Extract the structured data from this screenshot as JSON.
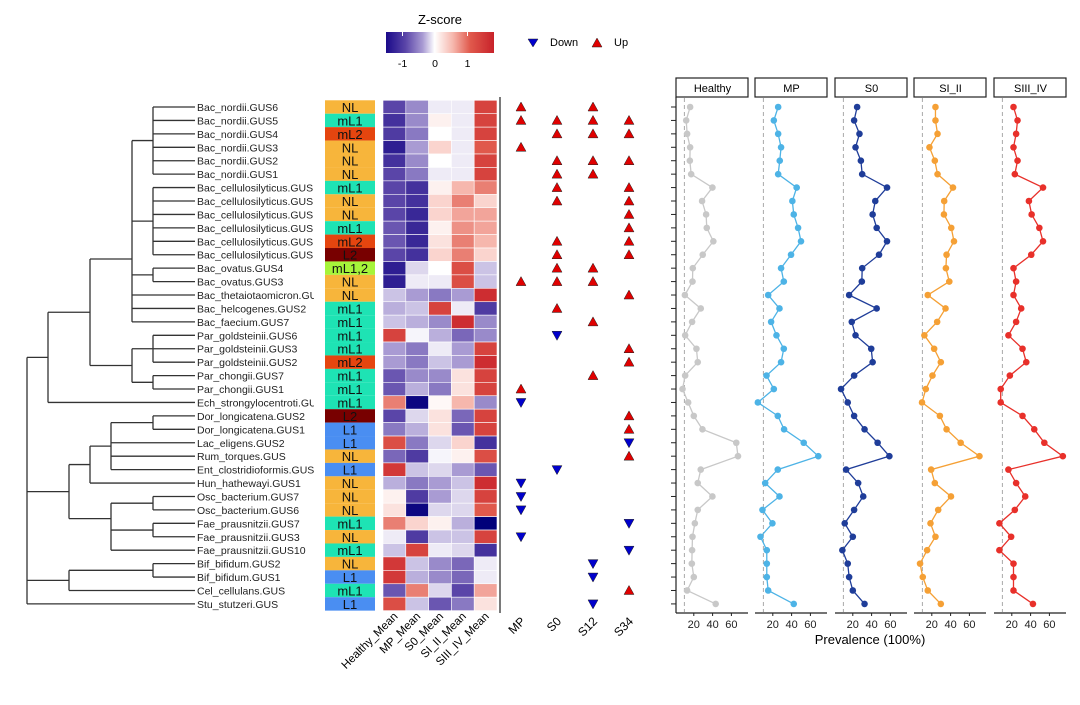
{
  "legend": {
    "zscore_title": "Z-score",
    "zscore_ticks": [
      "-1",
      "0",
      "1"
    ],
    "zscore_tick_values": [
      -1,
      0,
      1
    ],
    "down_label": "Down",
    "up_label": "Up",
    "down_color": "#0000cc",
    "up_color": "#e00000"
  },
  "chart_data": {
    "type": "heatmap",
    "rows": [
      "Bac_nordii.GUS6",
      "Bac_nordii.GUS5",
      "Bac_nordii.GUS4",
      "Bac_nordii.GUS3",
      "Bac_nordii.GUS2",
      "Bac_nordii.GUS1",
      "Bac_cellulosilyticus.GUS",
      "Bac_cellulosilyticus.GUS",
      "Bac_cellulosilyticus.GUS",
      "Bac_cellulosilyticus.GUS",
      "Bac_cellulosilyticus.GUS",
      "Bac_cellulosilyticus.GUS",
      "Bac_ovatus.GUS4",
      "Bac_ovatus.GUS3",
      "Bac_thetaiotaomicron.GU",
      "Bac_helcogenes.GUS2",
      "Bac_faecium.GUS7",
      "Par_goldsteinii.GUS6",
      "Par_goldsteinii.GUS3",
      "Par_goldsteinii.GUS2",
      "Par_chongii.GUS7",
      "Par_chongii.GUS1",
      "Ech_strongylocentroti.GU",
      "Dor_longicatena.GUS2",
      "Dor_longicatena.GUS1",
      "Lac_eligens.GUS2",
      "Rum_torques.GUS",
      "Ent_clostridioformis.GUS",
      "Hun_hathewayi.GUS1",
      "Osc_bacterium.GUS7",
      "Osc_bacterium.GUS6",
      "Fae_prausnitzii.GUS7",
      "Fae_prausnitzii.GUS3",
      "Fae_prausnitzii.GUS10",
      "Bif_bifidum.GUS2",
      "Bif_bifidum.GUS1",
      "Cel_cellulans.GUS",
      "Stu_stutzeri.GUS"
    ],
    "clusters": [
      "NL",
      "mL1",
      "mL2",
      "NL",
      "NL",
      "NL",
      "mL1",
      "NL",
      "NL",
      "mL1",
      "mL2",
      "L2",
      "mL1,2",
      "NL",
      "NL",
      "mL1",
      "mL1",
      "mL1",
      "mL1",
      "mL2",
      "mL1",
      "mL1",
      "mL1",
      "L2",
      "L1",
      "L1",
      "NL",
      "L1",
      "NL",
      "NL",
      "NL",
      "mL1",
      "NL",
      "mL1",
      "NL",
      "L1",
      "mL1",
      "L1"
    ],
    "cluster_colors": {
      "NL": "#f7b53b",
      "mL1": "#1ee3b4",
      "mL2": "#e5450f",
      "L2": "#780000",
      "L1": "#4a8ef2",
      "mL1,2": "#a6f43a"
    },
    "heatmap_columns": [
      "Healthy_Mean",
      "MP_Mean",
      "S0_Mean",
      "SI_II_Mean",
      "SIII_IV_Mean"
    ],
    "zscores": [
      [
        -1.0,
        -0.6,
        -0.1,
        -0.1,
        1.2
      ],
      [
        -1.2,
        -0.6,
        0.1,
        -0.1,
        1.2
      ],
      [
        -1.1,
        -0.7,
        0.0,
        -0.1,
        1.2
      ],
      [
        -1.4,
        -0.5,
        0.3,
        -0.1,
        1.0
      ],
      [
        -1.2,
        -0.6,
        0.0,
        -0.1,
        1.2
      ],
      [
        -1.0,
        -0.7,
        -0.1,
        -0.1,
        1.2
      ],
      [
        -1.0,
        -1.2,
        0.1,
        0.5,
        0.8
      ],
      [
        -1.0,
        -1.2,
        0.3,
        0.8,
        0.3
      ],
      [
        -1.0,
        -1.3,
        0.3,
        0.6,
        0.6
      ],
      [
        -0.9,
        -1.3,
        0.1,
        0.7,
        0.6
      ],
      [
        -0.9,
        -1.3,
        0.2,
        0.8,
        0.5
      ],
      [
        -1.0,
        -1.2,
        0.3,
        0.8,
        0.3
      ],
      [
        -1.4,
        -0.2,
        0.0,
        1.1,
        -0.3
      ],
      [
        -1.4,
        -0.1,
        -0.1,
        1.1,
        -0.3
      ],
      [
        -0.3,
        -0.5,
        -0.7,
        -0.5,
        1.4
      ],
      [
        -0.4,
        -0.3,
        1.2,
        -0.1,
        -1.1
      ],
      [
        -0.3,
        -0.4,
        -0.6,
        1.4,
        -0.6
      ],
      [
        1.2,
        -0.05,
        -0.4,
        -0.8,
        -0.6
      ],
      [
        -0.5,
        -0.7,
        -0.1,
        -0.5,
        1.2
      ],
      [
        -0.5,
        -0.7,
        -0.3,
        -0.5,
        1.4
      ],
      [
        -0.9,
        -0.6,
        -0.6,
        0.2,
        1.2
      ],
      [
        -0.9,
        -0.4,
        -0.7,
        0.2,
        1.2
      ],
      [
        0.8,
        -2.0,
        0.05,
        0.5,
        -0.6
      ],
      [
        -1.0,
        -0.2,
        0.2,
        -0.8,
        1.2
      ],
      [
        -0.7,
        -0.4,
        0.2,
        -0.9,
        1.2
      ],
      [
        1.1,
        -0.7,
        -0.2,
        0.3,
        -1.2
      ],
      [
        -0.8,
        -1.1,
        -0.05,
        0.1,
        1.1
      ],
      [
        1.3,
        -0.3,
        -0.2,
        -0.5,
        -0.9
      ],
      [
        -0.4,
        -0.7,
        -0.5,
        -0.3,
        1.4
      ],
      [
        0.1,
        -1.1,
        -0.5,
        -0.2,
        1.2
      ],
      [
        0.2,
        -2.0,
        -0.2,
        -0.2,
        1.0
      ],
      [
        0.8,
        0.3,
        0.1,
        -0.4,
        -2.3
      ],
      [
        -0.1,
        -1.1,
        -0.3,
        -0.3,
        1.2
      ],
      [
        -0.3,
        1.2,
        -0.1,
        -0.2,
        -1.2
      ],
      [
        1.3,
        -0.3,
        -0.6,
        -0.8,
        -0.1
      ],
      [
        1.3,
        -0.4,
        -0.6,
        -0.8,
        -0.1
      ],
      [
        -0.9,
        0.8,
        -0.2,
        -1.0,
        0.6
      ],
      [
        1.1,
        -0.3,
        -0.9,
        -0.7,
        0.2
      ]
    ],
    "change_columns": [
      "MP",
      "S0",
      "S12",
      "S34"
    ],
    "changes": [
      [
        "up",
        "",
        "up",
        ""
      ],
      [
        "up",
        "up",
        "up",
        "up"
      ],
      [
        "",
        "up",
        "up",
        "up"
      ],
      [
        "up",
        "",
        "",
        ""
      ],
      [
        "",
        "up",
        "up",
        "up"
      ],
      [
        "",
        "up",
        "up",
        ""
      ],
      [
        "",
        "up",
        "",
        "up"
      ],
      [
        "",
        "up",
        "",
        "up"
      ],
      [
        "",
        "",
        "",
        "up"
      ],
      [
        "",
        "",
        "",
        "up"
      ],
      [
        "",
        "up",
        "",
        "up"
      ],
      [
        "",
        "up",
        "",
        "up"
      ],
      [
        "",
        "up",
        "up",
        ""
      ],
      [
        "up",
        "up",
        "up",
        ""
      ],
      [
        "",
        "",
        "",
        "up"
      ],
      [
        "",
        "up",
        "",
        ""
      ],
      [
        "",
        "",
        "up",
        ""
      ],
      [
        "",
        "down",
        "",
        ""
      ],
      [
        "",
        "",
        "",
        "up"
      ],
      [
        "",
        "",
        "",
        "up"
      ],
      [
        "",
        "",
        "up",
        ""
      ],
      [
        "up",
        "",
        "",
        ""
      ],
      [
        "down",
        "",
        "",
        ""
      ],
      [
        "",
        "",
        "",
        "up"
      ],
      [
        "",
        "",
        "",
        "up"
      ],
      [
        "",
        "",
        "",
        "down"
      ],
      [
        "",
        "",
        "",
        "up"
      ],
      [
        "",
        "down",
        "",
        ""
      ],
      [
        "down",
        "",
        "",
        ""
      ],
      [
        "down",
        "",
        "",
        ""
      ],
      [
        "down",
        "",
        "",
        ""
      ],
      [
        "",
        "",
        "",
        "down"
      ],
      [
        "down",
        "",
        "",
        ""
      ],
      [
        "",
        "",
        "",
        "down"
      ],
      [
        "",
        "",
        "down",
        ""
      ],
      [
        "",
        "",
        "down",
        ""
      ],
      [
        "",
        "",
        "",
        "up"
      ],
      [
        "",
        "",
        "down",
        ""
      ]
    ],
    "prevalence_xlabel": "Prevalence (100%)",
    "prevalence_ticks": [
      "20",
      "40",
      "60"
    ],
    "prevalence_tick_values": [
      20,
      40,
      60
    ],
    "prevalence_xlim": [
      0,
      77
    ],
    "threshold": 10,
    "prevalence_series": [
      {
        "name": "Healthy",
        "color": "#c8c8c8",
        "values": [
          16.1,
          11.9,
          12.9,
          16.1,
          15.8,
          17.2,
          39.8,
          28.8,
          33.1,
          33.8,
          40.8,
          29.5,
          18.9,
          18.6,
          10.5,
          27.4,
          18.2,
          10.8,
          22.8,
          24.2,
          10.8,
          8,
          14,
          20,
          29.2,
          65.2,
          67,
          27.4,
          24.2,
          39.8,
          24.2,
          21.1,
          18.6,
          18.2,
          17.9,
          20,
          12.9,
          43.3
        ]
      },
      {
        "name": "MP",
        "color": "#4db3e6",
        "values": [
          25.7,
          21.1,
          25.7,
          28.8,
          27.4,
          25.7,
          45.4,
          40.8,
          42.3,
          46.9,
          50,
          39.4,
          28.8,
          31.7,
          15.1,
          27.1,
          18.2,
          23.9,
          31.7,
          28.8,
          13.3,
          21.1,
          4.1,
          25.3,
          32,
          52.9,
          68.4,
          25.3,
          11.9,
          27.1,
          9,
          19.6,
          6.9,
          13.6,
          13.6,
          13.6,
          15.1,
          42.3
        ]
      },
      {
        "name": "S0",
        "color": "#1f3d99",
        "values": [
          24.6,
          21.4,
          27.1,
          22.9,
          28.6,
          30,
          56.4,
          43.9,
          41.1,
          45.4,
          56.4,
          47.9,
          30,
          29.6,
          16.1,
          45.4,
          18.9,
          22.9,
          39.6,
          41.1,
          21.4,
          7.5,
          14.6,
          21.4,
          32.5,
          46.4,
          58.9,
          12.9,
          25.7,
          31.1,
          21.4,
          11.4,
          20,
          8.9,
          14.6,
          16.1,
          20,
          32.5
        ]
      },
      {
        "name": "SI_II",
        "color": "#f5a035",
        "values": [
          23.9,
          23.9,
          26.1,
          17.5,
          23.2,
          26.1,
          42.5,
          33.2,
          32.9,
          40.7,
          43.6,
          35.7,
          35,
          38.6,
          15.7,
          34.6,
          25.7,
          12.1,
          22.5,
          29.6,
          20.7,
          13.6,
          9.6,
          28.6,
          35.7,
          50.7,
          70.7,
          19.3,
          23.2,
          40.4,
          26.8,
          18.6,
          23.9,
          15,
          7.5,
          10.4,
          15.7,
          29.6
        ]
      },
      {
        "name": "SIII_IV",
        "color": "#e8302a",
        "values": [
          21.8,
          26.1,
          24.6,
          21.8,
          26.1,
          23.2,
          53.2,
          38.2,
          41.1,
          49.3,
          53.2,
          40.7,
          21.8,
          24.6,
          21.8,
          30,
          24.6,
          16.4,
          31.4,
          35.4,
          17.9,
          8.2,
          8.2,
          31.4,
          43.9,
          54.6,
          74.3,
          16.4,
          24.6,
          34.3,
          23.2,
          6.8,
          19.3,
          6.8,
          21.8,
          21.8,
          21.8,
          42.5
        ]
      }
    ]
  }
}
